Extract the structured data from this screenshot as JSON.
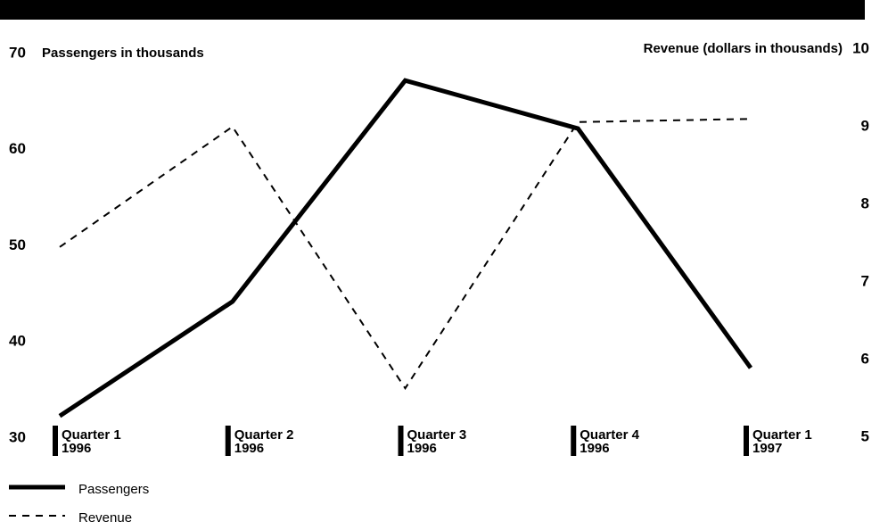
{
  "chart_data": {
    "type": "line",
    "y_label": "Passengers in thousands",
    "y2_label": "Revenue (dollars in thousands)",
    "categories": [
      "Quarter 1\n1996",
      "Quarter 2\n1996",
      "Quarter 3\n1996",
      "Quarter 4\n1996",
      "Quarter 1\n1997"
    ],
    "series": [
      {
        "name": "Passengers",
        "color": "#000000",
        "style": "solid",
        "values": [
          32.3,
          44.2,
          67.2,
          62.2,
          37.3
        ]
      },
      {
        "name": "Revenue",
        "color": "#000000",
        "style": "dashed",
        "axis": "y2",
        "values": [
          7.45,
          9.0,
          5.63,
          9.06,
          9.1
        ]
      }
    ],
    "ylim": [
      30,
      70
    ],
    "yticks": [
      30,
      40,
      50,
      60,
      70
    ],
    "y2lim": [
      5,
      10
    ],
    "y2ticks": [
      5,
      6,
      7,
      8,
      9,
      10
    ],
    "legend": "bottom-left"
  }
}
